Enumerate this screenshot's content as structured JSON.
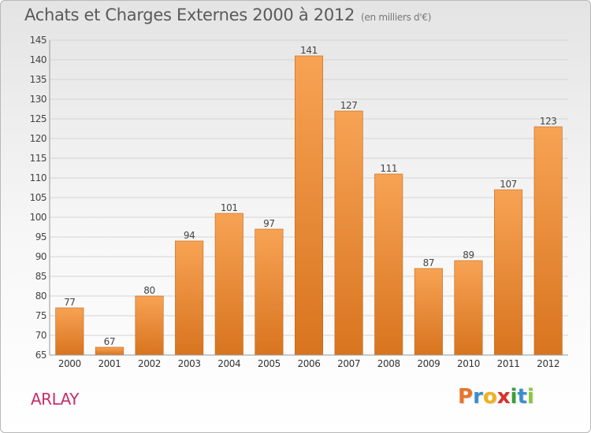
{
  "title": "Achats et Charges Externes 2000 à 2012",
  "unit": "(en milliers d'€)",
  "place": "ARLAY",
  "brand": {
    "letters": [
      "P",
      "r",
      "o",
      "x",
      "i",
      "t",
      "i"
    ],
    "colors": [
      "#e8732a",
      "#3a8ed0",
      "#f0b21b",
      "#d8322c",
      "#3a9e3a",
      "#3a8ed0",
      "#8cc63e"
    ]
  },
  "colors": {
    "bar_top": "#f7a354",
    "bar_bottom": "#d8741f",
    "bar_border": "#c0651a"
  },
  "chart_data": {
    "type": "bar",
    "categories": [
      "2000",
      "2001",
      "2002",
      "2003",
      "2004",
      "2005",
      "2006",
      "2007",
      "2008",
      "2009",
      "2010",
      "2011",
      "2012"
    ],
    "values": [
      77,
      67,
      80,
      94,
      101,
      97,
      141,
      127,
      111,
      87,
      89,
      107,
      123
    ],
    "value_labels": [
      "77",
      "67",
      "80",
      "94",
      "101",
      "97",
      "141",
      "127",
      "111",
      "87",
      "89",
      "107",
      "123"
    ],
    "yticks": [
      "65",
      "70",
      "75",
      "80",
      "85",
      "90",
      "95",
      "100",
      "105",
      "110",
      "115",
      "120",
      "125",
      "130",
      "135",
      "140",
      "145"
    ],
    "ylim": [
      65,
      145
    ],
    "grid": true,
    "legend": "none"
  }
}
